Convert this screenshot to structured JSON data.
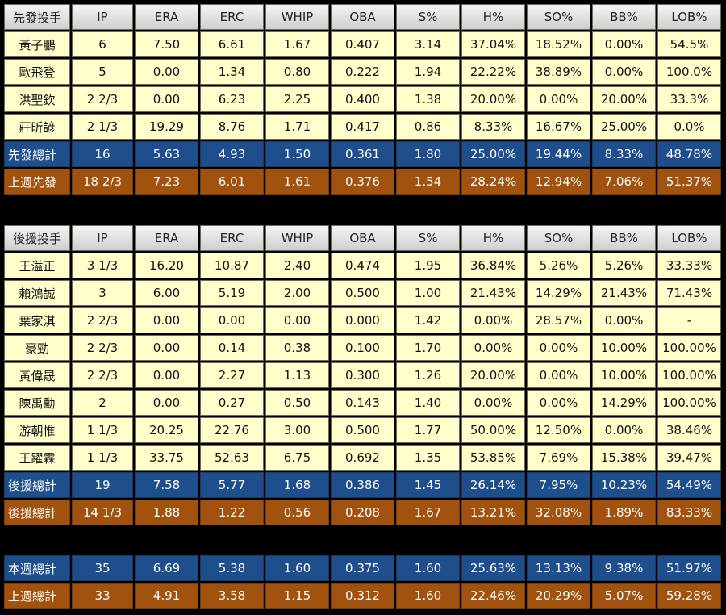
{
  "columns": [
    "IP",
    "ERA",
    "ERC",
    "WHIP",
    "OBA",
    "S%",
    "H%",
    "SO%",
    "BB%",
    "LOB%"
  ],
  "starters": {
    "header_label": "先發投手",
    "rows": [
      {
        "name": "黃子鵬",
        "values": [
          "6",
          "7.50",
          "6.61",
          "1.67",
          "0.407",
          "3.14",
          "37.04%",
          "18.52%",
          "0.00%",
          "54.5%"
        ]
      },
      {
        "name": "歐飛登",
        "values": [
          "5",
          "0.00",
          "1.34",
          "0.80",
          "0.222",
          "1.94",
          "22.22%",
          "38.89%",
          "0.00%",
          "100.0%"
        ]
      },
      {
        "name": "洪聖欽",
        "values": [
          "2 2/3",
          "0.00",
          "6.23",
          "2.25",
          "0.400",
          "1.38",
          "20.00%",
          "0.00%",
          "20.00%",
          "33.3%"
        ]
      },
      {
        "name": "莊昕諺",
        "values": [
          "2 1/3",
          "19.29",
          "8.76",
          "1.71",
          "0.417",
          "0.86",
          "8.33%",
          "16.67%",
          "25.00%",
          "0.0%"
        ]
      }
    ],
    "total": {
      "name": "先發總計",
      "values": [
        "16",
        "5.63",
        "4.93",
        "1.50",
        "0.361",
        "1.80",
        "25.00%",
        "19.44%",
        "8.33%",
        "48.78%"
      ]
    },
    "last_week": {
      "name": "上週先發",
      "values": [
        "18 2/3",
        "7.23",
        "6.01",
        "1.61",
        "0.376",
        "1.54",
        "28.24%",
        "12.94%",
        "7.06%",
        "51.37%"
      ]
    }
  },
  "relievers": {
    "header_label": "後援投手",
    "rows": [
      {
        "name": "王溢正",
        "values": [
          "3 1/3",
          "16.20",
          "10.87",
          "2.40",
          "0.474",
          "1.95",
          "36.84%",
          "5.26%",
          "5.26%",
          "33.33%"
        ]
      },
      {
        "name": "賴鴻誠",
        "values": [
          "3",
          "6.00",
          "5.19",
          "2.00",
          "0.500",
          "1.00",
          "21.43%",
          "14.29%",
          "21.43%",
          "71.43%"
        ]
      },
      {
        "name": "葉家淇",
        "values": [
          "2 2/3",
          "0.00",
          "0.00",
          "0.00",
          "0.000",
          "1.42",
          "0.00%",
          "28.57%",
          "0.00%",
          "-"
        ]
      },
      {
        "name": "豪勁",
        "values": [
          "2 2/3",
          "0.00",
          "0.14",
          "0.38",
          "0.100",
          "1.70",
          "0.00%",
          "0.00%",
          "10.00%",
          "100.00%"
        ]
      },
      {
        "name": "黃偉晟",
        "values": [
          "2 2/3",
          "0.00",
          "2.27",
          "1.13",
          "0.300",
          "1.26",
          "20.00%",
          "0.00%",
          "10.00%",
          "100.00%"
        ]
      },
      {
        "name": "陳禹勳",
        "values": [
          "2",
          "0.00",
          "0.27",
          "0.50",
          "0.143",
          "1.40",
          "0.00%",
          "0.00%",
          "14.29%",
          "100.00%"
        ]
      },
      {
        "name": "游朝惟",
        "values": [
          "1 1/3",
          "20.25",
          "22.76",
          "3.00",
          "0.500",
          "1.77",
          "50.00%",
          "12.50%",
          "0.00%",
          "38.46%"
        ]
      },
      {
        "name": "王躍霖",
        "values": [
          "1 1/3",
          "33.75",
          "52.63",
          "6.75",
          "0.692",
          "1.35",
          "53.85%",
          "7.69%",
          "15.38%",
          "39.47%"
        ]
      }
    ],
    "total": {
      "name": "後援總計",
      "values": [
        "19",
        "7.58",
        "5.77",
        "1.68",
        "0.386",
        "1.45",
        "26.14%",
        "7.95%",
        "10.23%",
        "54.49%"
      ]
    },
    "last_week": {
      "name": "後援總計",
      "values": [
        "14 1/3",
        "1.88",
        "1.22",
        "0.56",
        "0.208",
        "1.67",
        "13.21%",
        "32.08%",
        "1.89%",
        "83.33%"
      ]
    }
  },
  "weekly": {
    "this_week": {
      "name": "本週總計",
      "values": [
        "35",
        "6.69",
        "5.38",
        "1.60",
        "0.375",
        "1.60",
        "25.63%",
        "13.13%",
        "9.38%",
        "51.97%"
      ]
    },
    "last_week": {
      "name": "上週總計",
      "values": [
        "33",
        "4.91",
        "3.58",
        "1.15",
        "0.312",
        "1.60",
        "22.46%",
        "20.29%",
        "5.07%",
        "59.28%"
      ]
    }
  }
}
